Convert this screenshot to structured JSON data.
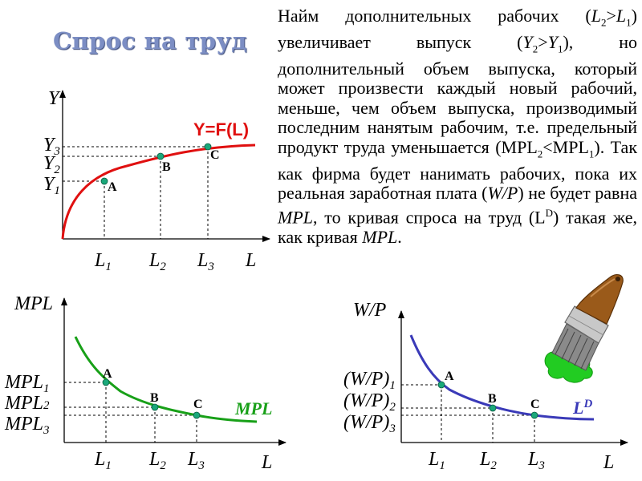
{
  "title": "Спрос на труд",
  "paragraph": {
    "p1": "Найм дополнительных рабочих (",
    "L2": "L",
    "L2sub": "2",
    "gt1": ">",
    "L1": "L",
    "L1sub": "1",
    "p2": ") увеличивает выпуск (",
    "Y2": "Y",
    "Y2sub": "2",
    "gt2": ">",
    "Y1": "Y",
    "Y1sub": "1",
    "p3": "), но дополнительный объем выпуска, который может произвести каждый новый рабочий, меньше, чем объем выпуска, производимый последним нанятым рабочим, т.е. предельный продукт труда уменьшается (MPL",
    "mpl2sub": "2",
    "lt": "<MPL",
    "mpl1sub": "1",
    "p4": "). Так как фирма будет нанимать рабочих, пока их реальная заработная плата (",
    "wp": "W/P",
    "p5": ") не будет равна ",
    "mpl": "MPL",
    "p6": ", то кривая спроса на труд (L",
    "dsup": "D",
    "p7": ") такая же, как кривая ",
    "mpl_end": "MPL",
    "p8": "."
  },
  "colors": {
    "production": "#e01010",
    "mpl": "#18a018",
    "demand": "#3a3ab8",
    "point": "#1aa87a",
    "title": "#7c8ec4"
  },
  "icons": {
    "brush": "paint-brush-icon"
  },
  "production_chart": {
    "y_axis": "Y",
    "x_axis": "L",
    "curve_label": "Y=F(L)",
    "y_ticks": [
      {
        "main": "Y",
        "sub": "3"
      },
      {
        "main": "Y",
        "sub": "2"
      },
      {
        "main": "Y",
        "sub": "1"
      }
    ],
    "x_ticks": [
      {
        "main": "L",
        "sub": "1"
      },
      {
        "main": "L",
        "sub": "2"
      },
      {
        "main": "L",
        "sub": "3"
      }
    ],
    "points": [
      "A",
      "B",
      "C"
    ]
  },
  "mpl_chart": {
    "y_axis": "MPL",
    "x_axis": "L",
    "curve_label": "MPL",
    "y_ticks": [
      {
        "main": "MPL",
        "sub": "1"
      },
      {
        "main": "MPL",
        "sub": "2"
      },
      {
        "main": "MPL",
        "sub": "3"
      }
    ],
    "x_ticks": [
      {
        "main": "L",
        "sub": "1"
      },
      {
        "main": "L",
        "sub": "2"
      },
      {
        "main": "L",
        "sub": "3"
      }
    ],
    "points": [
      "A",
      "B",
      "C"
    ]
  },
  "demand_chart": {
    "y_axis": "W/P",
    "x_axis": "L",
    "curve_label": "L",
    "curve_label_sup": "D",
    "y_ticks": [
      {
        "main": "(W/P)",
        "sub": "1"
      },
      {
        "main": "(W/P)",
        "sub": "2"
      },
      {
        "main": "(W/P)",
        "sub": "3"
      }
    ],
    "x_ticks": [
      {
        "main": "L",
        "sub": "1"
      },
      {
        "main": "L",
        "sub": "2"
      },
      {
        "main": "L",
        "sub": "3"
      }
    ],
    "points": [
      "A",
      "B",
      "C"
    ]
  }
}
